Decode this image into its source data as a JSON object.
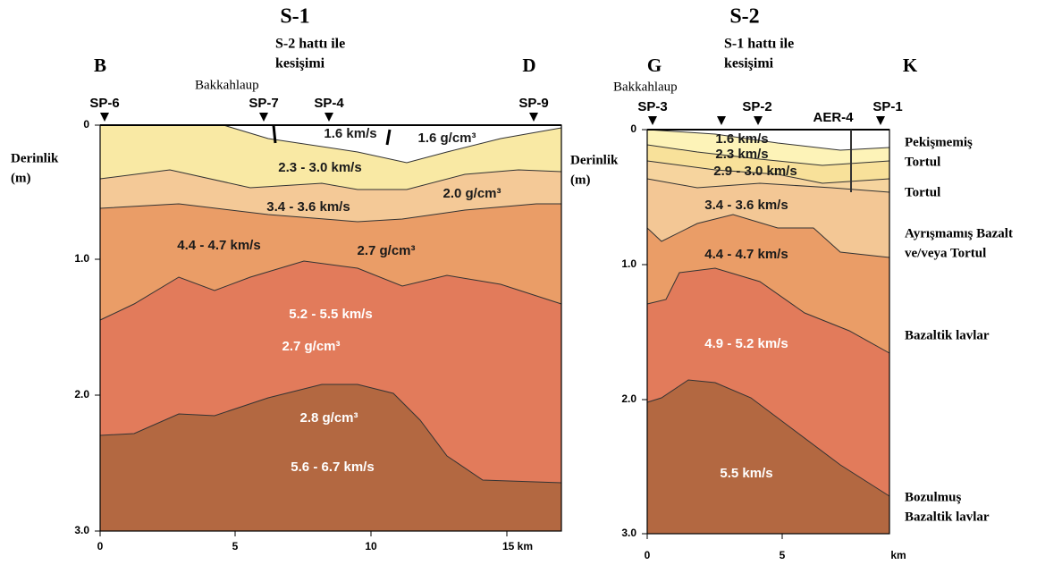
{
  "s1": {
    "title": "S-1",
    "subtitle": [
      "S-2 hattı ile",
      "kesişimi"
    ],
    "ends": [
      "B",
      "D"
    ],
    "place": "Bakkahlaup",
    "shot_points": [
      "SP-6",
      "SP-7",
      "SP-4",
      "SP-9"
    ],
    "y_label": [
      "Derinlik",
      "(m)"
    ],
    "y_ticks": [
      "0",
      "1.0",
      "2.0",
      "3.0"
    ],
    "x_ticks": [
      "0",
      "5",
      "10",
      "15 km"
    ],
    "layer_labels": [
      "1.6 km/s",
      "1.6 g/cm³",
      "2.3 - 3.0 km/s",
      "3.4 - 3.6 km/s",
      "2.0 g/cm³",
      "4.4 - 4.7 km/s",
      "2.7 g/cm³",
      "5.2 - 5.5 km/s",
      "2.7 g/cm³",
      "2.8 g/cm³",
      "5.6 - 6.7 km/s"
    ]
  },
  "s2": {
    "title": "S-2",
    "subtitle": [
      "S-1 hattı ile",
      "kesişimi"
    ],
    "ends": [
      "G",
      "K"
    ],
    "place": "Bakkahlaup",
    "shot_points": [
      "SP-3",
      "SP-2",
      "AER-4",
      "SP-1"
    ],
    "y_label": [
      "Derinlik",
      "(m)"
    ],
    "y_ticks": [
      "0",
      "1.0",
      "2.0",
      "3.0"
    ],
    "x_ticks": [
      "0",
      "5",
      "km"
    ],
    "layer_labels": [
      "1.6 km/s",
      "2.3 km/s",
      "2.9 - 3.0 km/s",
      "3.4 - 3.6 km/s",
      "4.4 - 4.7 km/s",
      "4.9 - 5.2 km/s",
      "5.5 km/s"
    ],
    "units": [
      "Pekişmemiş",
      "Tortul",
      "Tortul",
      "Ayrışmamış Bazalt",
      "ve/veya Tortul",
      "Bazaltik lavlar",
      "Bozulmuş",
      "Bazaltik lavlar"
    ]
  }
}
